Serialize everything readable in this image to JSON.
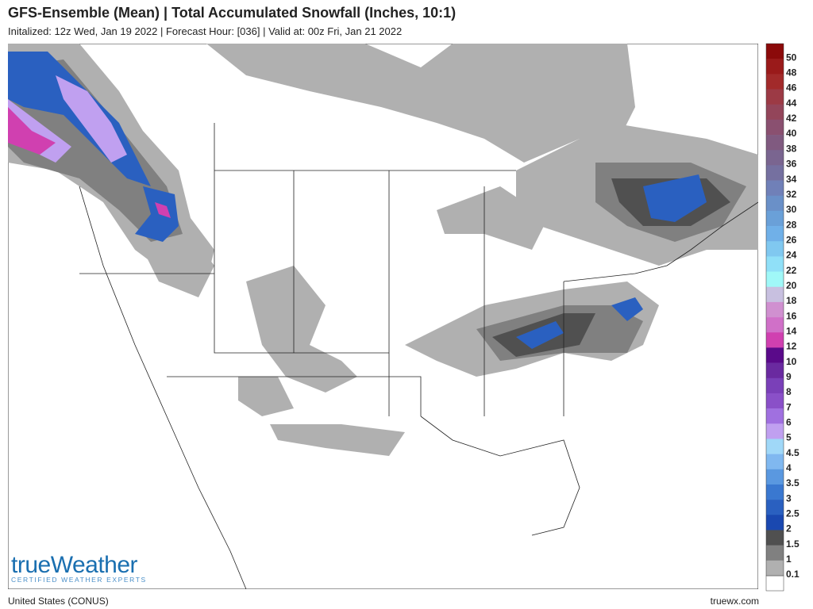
{
  "header": {
    "title": "GFS-Ensemble (Mean) | Total Accumulated Snowfall (Inches, 10:1)",
    "subtitle": "Initalized: 12z Wed, Jan 19 2022 | Forecast Hour: [036] | Valid at: 00z Fri, Jan 21 2022"
  },
  "legend": {
    "items": [
      {
        "label": "50",
        "color": "#8b0a0a"
      },
      {
        "label": "48",
        "color": "#9a1a1a"
      },
      {
        "label": "46",
        "color": "#a22a2a"
      },
      {
        "label": "44",
        "color": "#9c3a45"
      },
      {
        "label": "42",
        "color": "#93455a"
      },
      {
        "label": "40",
        "color": "#8a5070"
      },
      {
        "label": "38",
        "color": "#805a80"
      },
      {
        "label": "36",
        "color": "#7a6590"
      },
      {
        "label": "34",
        "color": "#7570a0"
      },
      {
        "label": "32",
        "color": "#7080b8"
      },
      {
        "label": "30",
        "color": "#6a90c8"
      },
      {
        "label": "28",
        "color": "#6aa0d8"
      },
      {
        "label": "26",
        "color": "#70b0e8"
      },
      {
        "label": "24",
        "color": "#80c8f0"
      },
      {
        "label": "22",
        "color": "#90e0f8"
      },
      {
        "label": "20",
        "color": "#a0f8f8"
      },
      {
        "label": "18",
        "color": "#c8c0e0"
      },
      {
        "label": "16",
        "color": "#d090d0"
      },
      {
        "label": "14",
        "color": "#d070c8"
      },
      {
        "label": "12",
        "color": "#d040b0"
      },
      {
        "label": "10",
        "color": "#5a0a8a"
      },
      {
        "label": "9",
        "color": "#6a2aa0"
      },
      {
        "label": "8",
        "color": "#7a40b8"
      },
      {
        "label": "7",
        "color": "#8a50c8"
      },
      {
        "label": "6",
        "color": "#a070e0"
      },
      {
        "label": "5",
        "color": "#c0a0f0"
      },
      {
        "label": "4.5",
        "color": "#a0d8f8"
      },
      {
        "label": "4",
        "color": "#80b8f0"
      },
      {
        "label": "3.5",
        "color": "#5a98e0"
      },
      {
        "label": "3",
        "color": "#3a78d0"
      },
      {
        "label": "2.5",
        "color": "#2a60c0"
      },
      {
        "label": "2",
        "color": "#1a48b0"
      },
      {
        "label": "1.5",
        "color": "#505050"
      },
      {
        "label": "1",
        "color": "#808080"
      },
      {
        "label": "0.1",
        "color": "#b0b0b0"
      }
    ]
  },
  "logo": {
    "name": "trueWeather",
    "tagline": "CERTIFIED WEATHER EXPERTS"
  },
  "footer": {
    "region": "United States (CONUS)",
    "site": "truewx.com"
  }
}
